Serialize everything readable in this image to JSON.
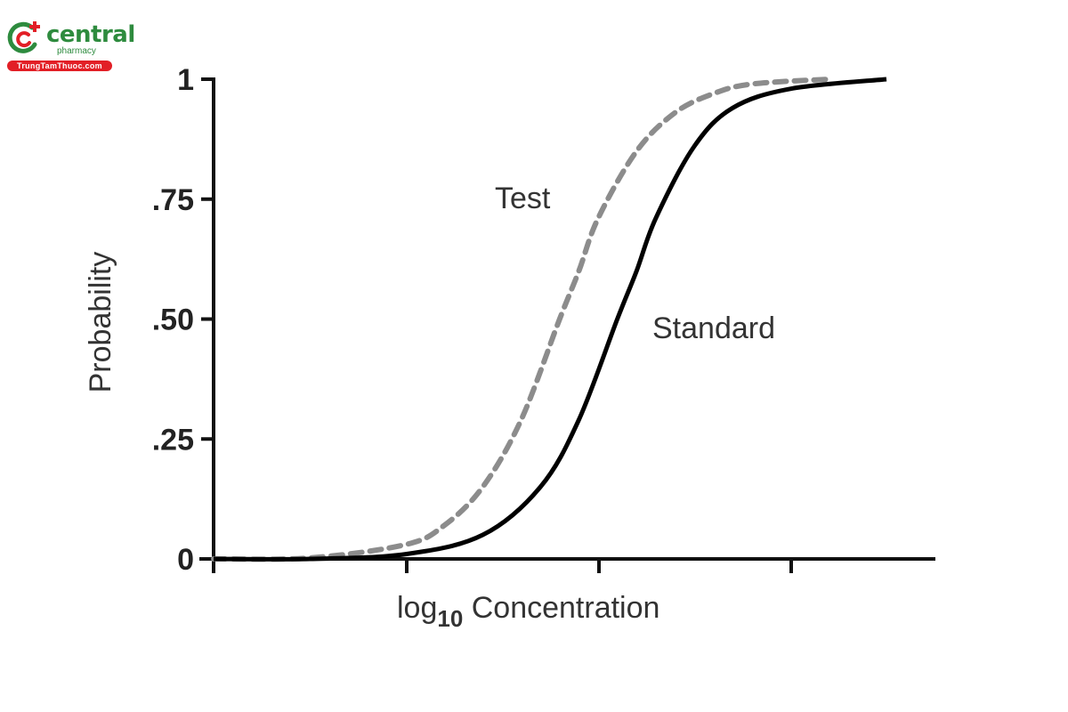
{
  "logo": {
    "word": "central",
    "sub": "pharmacy",
    "pill": "TrungTamThuoc.com",
    "colors": {
      "green": "#2e8b3e",
      "red": "#e21f26"
    }
  },
  "chart_data": {
    "type": "line",
    "title": "",
    "xlabel": "log10 Concentration",
    "xlabel_parts": {
      "base": "log",
      "sub": "10",
      "rest": " Concentration"
    },
    "ylabel": "Probability",
    "ylim": [
      0,
      1
    ],
    "y_ticks": [
      0,
      0.25,
      0.5,
      0.75,
      1
    ],
    "y_tick_labels": [
      "0",
      ".25",
      ".50",
      ".75",
      "1"
    ],
    "x_ticks_count": 4,
    "x_tick_labels": [],
    "grid": false,
    "legend": "inline labels",
    "series": [
      {
        "name": "Test",
        "style": "dashed",
        "color": "#8c8c8c",
        "x": [
          0.0,
          0.5,
          1.0,
          1.2,
          1.4,
          1.6,
          1.8,
          1.9,
          2.0,
          2.2,
          2.4,
          2.6,
          2.8,
          3.2
        ],
        "values": [
          0.0,
          0.002,
          0.03,
          0.07,
          0.15,
          0.29,
          0.5,
          0.6,
          0.71,
          0.85,
          0.93,
          0.97,
          0.99,
          1.0
        ]
      },
      {
        "name": "Standard",
        "style": "solid",
        "color": "#000000",
        "x": [
          0.0,
          0.5,
          1.0,
          1.4,
          1.7,
          1.9,
          2.1,
          2.2,
          2.3,
          2.5,
          2.7,
          3.0,
          3.5
        ],
        "values": [
          0.0,
          0.0,
          0.01,
          0.05,
          0.15,
          0.29,
          0.5,
          0.6,
          0.71,
          0.86,
          0.94,
          0.98,
          1.0
        ]
      }
    ],
    "annotations": [
      {
        "text": "Test",
        "near_series": "Test",
        "position": "left of curve, y≈0.75"
      },
      {
        "text": "Standard",
        "near_series": "Standard",
        "position": "right of curve, y≈0.48"
      }
    ]
  }
}
